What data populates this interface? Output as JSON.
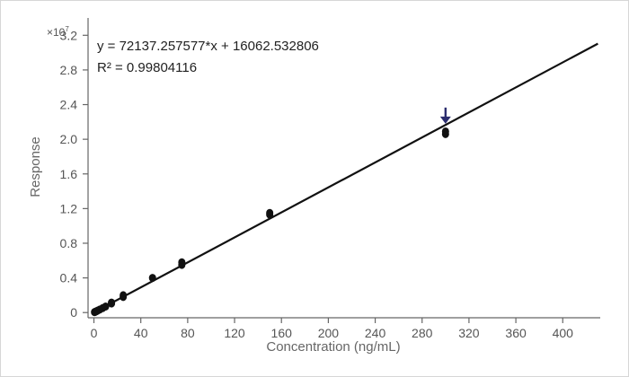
{
  "chart_data": {
    "type": "scatter",
    "title": "",
    "xlabel": "Concentration (ng/mL)",
    "ylabel": "Response",
    "y_multiplier": {
      "base": "×10",
      "exponent": "7"
    },
    "xlim": [
      -5,
      432
    ],
    "ylim": [
      -0.06,
      3.4
    ],
    "x_ticks": [
      0,
      40,
      80,
      120,
      160,
      200,
      240,
      280,
      320,
      360,
      400
    ],
    "y_ticks": [
      0,
      0.4,
      0.8,
      1.2,
      1.6,
      2.0,
      2.4,
      2.8,
      3.2
    ],
    "y_tick_labels": [
      "0",
      "0.4",
      "0.8",
      "1.2",
      "1.6",
      "2.0",
      "2.4",
      "2.8",
      "3.2"
    ],
    "equation": "y = 72137.257577*x  + 16062.532806",
    "r_squared": "R² = 0.99804116",
    "fit": {
      "slope": 72137.257577,
      "intercept": 16062.532806,
      "x_range": [
        0,
        430
      ]
    },
    "points": [
      {
        "x": 0.5,
        "y": 0.005
      },
      {
        "x": 1,
        "y": 0.008
      },
      {
        "x": 2,
        "y": 0.014
      },
      {
        "x": 3,
        "y": 0.021
      },
      {
        "x": 5,
        "y": 0.035
      },
      {
        "x": 7.5,
        "y": 0.052
      },
      {
        "x": 10,
        "y": 0.07
      },
      {
        "x": 15,
        "y": 0.105
      },
      {
        "x": 15,
        "y": 0.115
      },
      {
        "x": 25,
        "y": 0.18
      },
      {
        "x": 25,
        "y": 0.2
      },
      {
        "x": 50,
        "y": 0.4
      },
      {
        "x": 75,
        "y": 0.55
      },
      {
        "x": 75,
        "y": 0.58
      },
      {
        "x": 150,
        "y": 1.13
      },
      {
        "x": 150,
        "y": 1.15
      },
      {
        "x": 300,
        "y": 2.06
      },
      {
        "x": 300,
        "y": 2.09
      }
    ],
    "annotation": {
      "type": "arrow",
      "x": 300,
      "y": 2.2,
      "color": "#2b2d6e"
    },
    "grid": false,
    "legend": "none"
  }
}
